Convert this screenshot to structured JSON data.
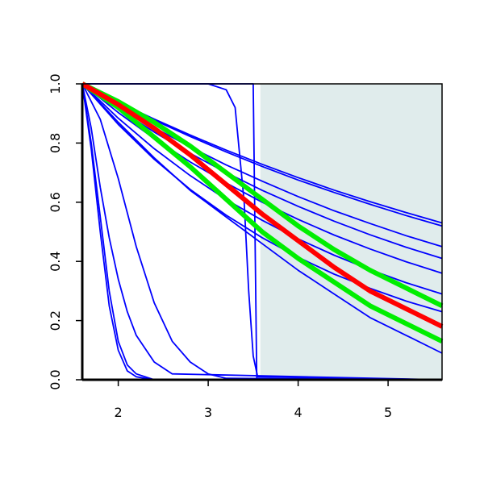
{
  "chart_data": {
    "type": "line",
    "xlim": [
      1.6,
      5.6
    ],
    "ylim": [
      0,
      1
    ],
    "xticks": [
      2,
      3,
      4,
      5
    ],
    "yticks": [
      {
        "value": 0,
        "label": "0.0"
      },
      0.2,
      0.4,
      0.6,
      0.8,
      {
        "value": 1,
        "label": "1.0"
      }
    ],
    "shade": {
      "x": [
        3.58,
        5.6
      ],
      "color": "#e0ecec"
    },
    "series": [
      {
        "color": "#0000ff",
        "x": [
          1.6,
          2.0,
          2.4,
          2.8,
          3.2,
          3.6,
          4.0,
          4.4,
          4.8,
          5.2,
          5.6
        ],
        "values": [
          1,
          0.938,
          0.881,
          0.827,
          0.776,
          0.728,
          0.683,
          0.641,
          0.602,
          0.565,
          0.53
        ]
      },
      {
        "color": "#0000ff",
        "x": [
          1.6,
          2.0,
          2.4,
          2.8,
          3.2,
          3.6,
          4.0,
          4.4,
          4.8,
          5.2,
          5.6
        ],
        "values": [
          1,
          0.937,
          0.877,
          0.822,
          0.77,
          0.721,
          0.675,
          0.633,
          0.593,
          0.555,
          0.52
        ]
      },
      {
        "color": "#0000ff",
        "x": [
          1.6,
          2.0,
          2.4,
          2.8,
          3.2,
          3.6,
          4.0,
          4.4,
          4.8,
          5.2,
          5.6
        ],
        "values": [
          1,
          0.923,
          0.852,
          0.787,
          0.726,
          0.671,
          0.619,
          0.571,
          0.528,
          0.487,
          0.45
        ]
      },
      {
        "color": "#0000ff",
        "x": [
          1.6,
          2.0,
          2.4,
          2.8,
          3.2,
          3.6,
          4.0,
          4.4,
          4.8,
          5.2,
          5.6
        ],
        "values": [
          1,
          0.915,
          0.837,
          0.765,
          0.7,
          0.64,
          0.586,
          0.536,
          0.49,
          0.448,
          0.41
        ]
      },
      {
        "color": "#0000ff",
        "x": [
          1.6,
          2.0,
          2.4,
          2.8,
          3.2,
          3.6,
          4.0,
          4.4,
          4.8,
          5.2,
          5.6
        ],
        "values": [
          1,
          0.903,
          0.815,
          0.736,
          0.665,
          0.6,
          0.542,
          0.489,
          0.442,
          0.399,
          0.36
        ]
      },
      {
        "color": "#0000ff",
        "x": [
          1.6,
          2.0,
          2.4,
          2.8,
          3.2,
          3.6,
          4.0,
          4.4,
          4.8,
          5.2,
          5.6
        ],
        "values": [
          1,
          0.884,
          0.781,
          0.69,
          0.609,
          0.539,
          0.476,
          0.421,
          0.372,
          0.328,
          0.29
        ]
      },
      {
        "color": "#0000ff",
        "x": [
          1.6,
          2.0,
          2.4,
          2.8,
          3.2,
          3.6,
          4.0,
          4.4,
          4.8,
          5.2,
          5.6
        ],
        "values": [
          1,
          0.863,
          0.745,
          0.643,
          0.556,
          0.48,
          0.414,
          0.357,
          0.309,
          0.266,
          0.23
        ]
      },
      {
        "color": "#0000ff",
        "x": [
          1.6,
          2.0,
          2.4,
          2.8,
          3.2,
          3.6,
          4.0,
          4.4,
          4.8,
          5.2,
          5.6
        ],
        "values": [
          1,
          0.87,
          0.75,
          0.64,
          0.55,
          0.46,
          0.37,
          0.29,
          0.21,
          0.15,
          0.09
        ]
      },
      {
        "color": "#0000ff",
        "x": [
          1.6,
          1.7,
          1.8,
          1.9,
          2.0,
          2.1,
          2.2,
          2.4,
          2.6,
          5.6
        ],
        "values": [
          1,
          0.78,
          0.5,
          0.25,
          0.1,
          0.03,
          0.01,
          0,
          0,
          0
        ]
      },
      {
        "color": "#0000ff",
        "x": [
          1.6,
          1.7,
          1.8,
          1.9,
          2.0,
          2.1,
          2.2,
          2.4,
          2.6,
          5.6
        ],
        "values": [
          1,
          0.8,
          0.55,
          0.3,
          0.13,
          0.05,
          0.02,
          0,
          0,
          0
        ]
      },
      {
        "color": "#0000ff",
        "x": [
          1.6,
          1.7,
          1.8,
          1.9,
          2.0,
          2.1,
          2.2,
          2.4,
          2.6,
          5.6
        ],
        "values": [
          1,
          0.85,
          0.65,
          0.48,
          0.34,
          0.23,
          0.15,
          0.06,
          0.02,
          0
        ]
      },
      {
        "color": "#0000ff",
        "x": [
          1.6,
          1.8,
          2.0,
          2.2,
          2.4,
          2.6,
          2.8,
          3.0,
          3.2,
          5.6
        ],
        "values": [
          1,
          0.88,
          0.68,
          0.45,
          0.26,
          0.13,
          0.06,
          0.02,
          0.005,
          0
        ]
      },
      {
        "color": "#0000ff",
        "x": [
          1.6,
          3.0,
          3.2,
          3.3,
          3.4,
          3.45,
          3.5,
          3.55,
          5.6
        ],
        "values": [
          1,
          1,
          0.98,
          0.92,
          0.6,
          0.3,
          0.08,
          0.01,
          0
        ]
      },
      {
        "color": "#0000ff",
        "x": [
          1.6,
          3.5,
          3.52,
          3.54,
          5.6
        ],
        "values": [
          1,
          1,
          0.5,
          0,
          0
        ]
      },
      {
        "color": "#00ee00",
        "x": [
          1.6,
          2.0,
          2.4,
          2.8,
          3.2,
          3.6,
          4.0,
          4.4,
          4.8,
          5.2,
          5.6
        ],
        "values": [
          1,
          0.94,
          0.87,
          0.79,
          0.7,
          0.61,
          0.52,
          0.44,
          0.37,
          0.31,
          0.25
        ]
      },
      {
        "color": "#00ee00",
        "x": [
          1.6,
          2.0,
          2.4,
          2.8,
          3.2,
          3.6,
          4.0,
          4.4,
          4.8,
          5.2,
          5.6
        ],
        "values": [
          1,
          0.92,
          0.82,
          0.72,
          0.61,
          0.5,
          0.41,
          0.33,
          0.25,
          0.19,
          0.13
        ]
      },
      {
        "color": "#ff0000",
        "x": [
          1.6,
          2.0,
          2.4,
          2.8,
          3.2,
          3.6,
          4.0,
          4.4,
          4.8,
          5.2,
          5.6
        ],
        "values": [
          1,
          0.93,
          0.85,
          0.76,
          0.66,
          0.56,
          0.47,
          0.38,
          0.3,
          0.24,
          0.18
        ]
      }
    ]
  }
}
